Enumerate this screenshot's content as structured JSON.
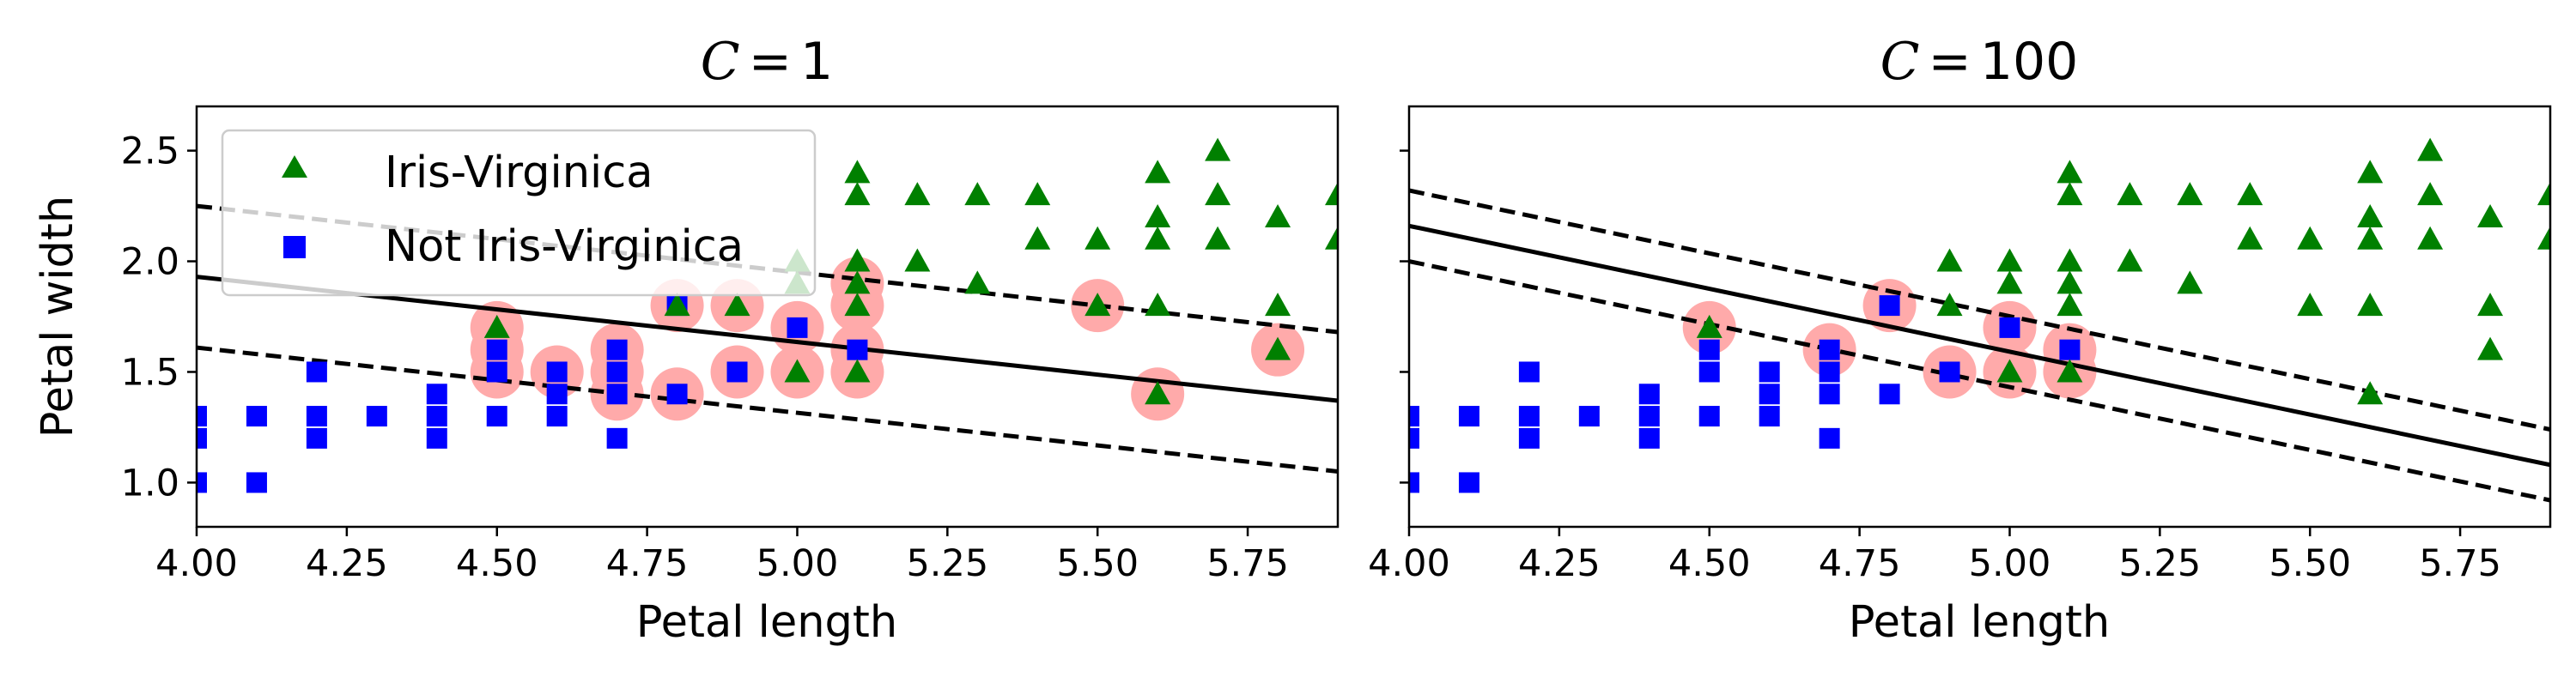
{
  "colors": {
    "virginica": "#008000",
    "not_virginica": "#0000ff",
    "support_vector": "#ffaaaa",
    "boundary": "#000000"
  },
  "legend": {
    "location": "upper-left (left panel only)",
    "entries": [
      {
        "label": "Iris-Virginica",
        "marker": "triangle",
        "color": "#008000"
      },
      {
        "label": "Not Iris-Virginica",
        "marker": "square",
        "color": "#0000ff"
      }
    ]
  },
  "chart_data": [
    {
      "type": "scatter",
      "title_var": "C",
      "title_eq": "=",
      "title_val": "1",
      "xlabel": "Petal length",
      "ylabel": "Petal width",
      "xlim": [
        4.0,
        5.9
      ],
      "ylim": [
        0.8,
        2.7
      ],
      "xticks": [
        "4.00",
        "4.25",
        "4.50",
        "4.75",
        "5.00",
        "5.25",
        "5.50",
        "5.75"
      ],
      "yticks": [
        "1.0",
        "1.5",
        "2.0",
        "2.5"
      ],
      "show_yticklabels": true,
      "grid": false,
      "series": [
        {
          "name": "Iris-Virginica",
          "marker": "triangle",
          "points": [
            [
              4.5,
              1.7
            ],
            [
              4.8,
              1.8
            ],
            [
              4.9,
              1.8
            ],
            [
              5.0,
              1.5
            ],
            [
              5.0,
              1.9
            ],
            [
              5.0,
              2.0
            ],
            [
              5.1,
              1.5
            ],
            [
              5.1,
              1.8
            ],
            [
              5.1,
              1.9
            ],
            [
              5.1,
              2.0
            ],
            [
              5.1,
              2.3
            ],
            [
              5.1,
              2.4
            ],
            [
              5.2,
              2.0
            ],
            [
              5.2,
              2.3
            ],
            [
              5.3,
              1.9
            ],
            [
              5.3,
              2.3
            ],
            [
              5.4,
              2.1
            ],
            [
              5.4,
              2.3
            ],
            [
              5.5,
              1.8
            ],
            [
              5.5,
              2.1
            ],
            [
              5.6,
              1.4
            ],
            [
              5.6,
              1.8
            ],
            [
              5.6,
              2.1
            ],
            [
              5.6,
              2.2
            ],
            [
              5.6,
              2.4
            ],
            [
              5.7,
              2.1
            ],
            [
              5.7,
              2.3
            ],
            [
              5.7,
              2.5
            ],
            [
              5.8,
              1.6
            ],
            [
              5.8,
              1.8
            ],
            [
              5.8,
              2.2
            ],
            [
              5.9,
              2.1
            ],
            [
              5.9,
              2.3
            ]
          ]
        },
        {
          "name": "Not Iris-Virginica",
          "marker": "square",
          "points": [
            [
              4.0,
              1.0
            ],
            [
              4.0,
              1.2
            ],
            [
              4.0,
              1.3
            ],
            [
              4.1,
              1.0
            ],
            [
              4.1,
              1.3
            ],
            [
              4.2,
              1.2
            ],
            [
              4.2,
              1.3
            ],
            [
              4.2,
              1.5
            ],
            [
              4.3,
              1.3
            ],
            [
              4.4,
              1.2
            ],
            [
              4.4,
              1.3
            ],
            [
              4.4,
              1.4
            ],
            [
              4.5,
              1.3
            ],
            [
              4.5,
              1.5
            ],
            [
              4.5,
              1.6
            ],
            [
              4.6,
              1.3
            ],
            [
              4.6,
              1.4
            ],
            [
              4.6,
              1.5
            ],
            [
              4.7,
              1.2
            ],
            [
              4.7,
              1.4
            ],
            [
              4.7,
              1.5
            ],
            [
              4.7,
              1.6
            ],
            [
              4.8,
              1.4
            ],
            [
              4.8,
              1.8
            ],
            [
              4.9,
              1.5
            ],
            [
              5.0,
              1.7
            ],
            [
              5.1,
              1.6
            ]
          ]
        }
      ],
      "support_vectors": [
        [
          4.5,
          1.5
        ],
        [
          4.5,
          1.6
        ],
        [
          4.5,
          1.7
        ],
        [
          4.6,
          1.5
        ],
        [
          4.7,
          1.4
        ],
        [
          4.7,
          1.5
        ],
        [
          4.7,
          1.6
        ],
        [
          4.8,
          1.4
        ],
        [
          4.8,
          1.8
        ],
        [
          4.9,
          1.5
        ],
        [
          4.9,
          1.8
        ],
        [
          5.0,
          1.5
        ],
        [
          5.0,
          1.7
        ],
        [
          5.1,
          1.5
        ],
        [
          5.1,
          1.6
        ],
        [
          5.1,
          1.8
        ],
        [
          5.1,
          1.9
        ],
        [
          5.5,
          1.8
        ],
        [
          5.6,
          1.4
        ],
        [
          5.8,
          1.6
        ]
      ],
      "decision_boundary": [
        [
          4.0,
          1.93
        ],
        [
          5.9,
          1.37
        ]
      ],
      "margin_upper": [
        [
          4.0,
          2.25
        ],
        [
          5.9,
          1.68
        ]
      ],
      "margin_lower": [
        [
          4.0,
          1.61
        ],
        [
          5.9,
          1.05
        ]
      ]
    },
    {
      "type": "scatter",
      "title_var": "C",
      "title_eq": "=",
      "title_val": "100",
      "xlabel": "Petal length",
      "ylabel": "",
      "xlim": [
        4.0,
        5.9
      ],
      "ylim": [
        0.8,
        2.7
      ],
      "xticks": [
        "4.00",
        "4.25",
        "4.50",
        "4.75",
        "5.00",
        "5.25",
        "5.50",
        "5.75"
      ],
      "yticks": [
        "1.0",
        "1.5",
        "2.0",
        "2.5"
      ],
      "show_yticklabels": false,
      "grid": false,
      "series": [
        {
          "name": "Iris-Virginica",
          "marker": "triangle",
          "points": [
            [
              4.5,
              1.7
            ],
            [
              4.9,
              1.8
            ],
            [
              4.9,
              2.0
            ],
            [
              5.0,
              1.5
            ],
            [
              5.0,
              1.9
            ],
            [
              5.0,
              2.0
            ],
            [
              5.1,
              1.5
            ],
            [
              5.1,
              1.8
            ],
            [
              5.1,
              1.9
            ],
            [
              5.1,
              2.0
            ],
            [
              5.1,
              2.3
            ],
            [
              5.1,
              2.4
            ],
            [
              5.2,
              2.0
            ],
            [
              5.2,
              2.3
            ],
            [
              5.3,
              1.9
            ],
            [
              5.3,
              2.3
            ],
            [
              5.4,
              2.1
            ],
            [
              5.4,
              2.3
            ],
            [
              5.5,
              1.8
            ],
            [
              5.5,
              2.1
            ],
            [
              5.6,
              1.4
            ],
            [
              5.6,
              1.8
            ],
            [
              5.6,
              2.1
            ],
            [
              5.6,
              2.2
            ],
            [
              5.6,
              2.4
            ],
            [
              5.7,
              2.1
            ],
            [
              5.7,
              2.3
            ],
            [
              5.7,
              2.5
            ],
            [
              5.8,
              1.6
            ],
            [
              5.8,
              1.8
            ],
            [
              5.8,
              2.2
            ],
            [
              5.9,
              2.1
            ],
            [
              5.9,
              2.3
            ]
          ]
        },
        {
          "name": "Not Iris-Virginica",
          "marker": "square",
          "points": [
            [
              4.0,
              1.0
            ],
            [
              4.0,
              1.2
            ],
            [
              4.0,
              1.3
            ],
            [
              4.1,
              1.0
            ],
            [
              4.1,
              1.3
            ],
            [
              4.2,
              1.2
            ],
            [
              4.2,
              1.3
            ],
            [
              4.2,
              1.5
            ],
            [
              4.3,
              1.3
            ],
            [
              4.4,
              1.2
            ],
            [
              4.4,
              1.3
            ],
            [
              4.4,
              1.4
            ],
            [
              4.5,
              1.3
            ],
            [
              4.5,
              1.5
            ],
            [
              4.5,
              1.6
            ],
            [
              4.6,
              1.3
            ],
            [
              4.6,
              1.4
            ],
            [
              4.6,
              1.5
            ],
            [
              4.7,
              1.2
            ],
            [
              4.7,
              1.4
            ],
            [
              4.7,
              1.5
            ],
            [
              4.7,
              1.6
            ],
            [
              4.8,
              1.4
            ],
            [
              4.8,
              1.8
            ],
            [
              4.9,
              1.5
            ],
            [
              5.0,
              1.7
            ],
            [
              5.1,
              1.6
            ]
          ]
        }
      ],
      "support_vectors": [
        [
          4.5,
          1.7
        ],
        [
          4.7,
          1.6
        ],
        [
          4.8,
          1.8
        ],
        [
          4.9,
          1.5
        ],
        [
          5.0,
          1.5
        ],
        [
          5.0,
          1.7
        ],
        [
          5.1,
          1.5
        ],
        [
          5.1,
          1.6
        ]
      ],
      "decision_boundary": [
        [
          4.0,
          2.16
        ],
        [
          5.9,
          1.08
        ]
      ],
      "margin_upper": [
        [
          4.0,
          2.32
        ],
        [
          5.9,
          1.24
        ]
      ],
      "margin_lower": [
        [
          4.0,
          2.0
        ],
        [
          5.9,
          0.92
        ]
      ]
    }
  ]
}
